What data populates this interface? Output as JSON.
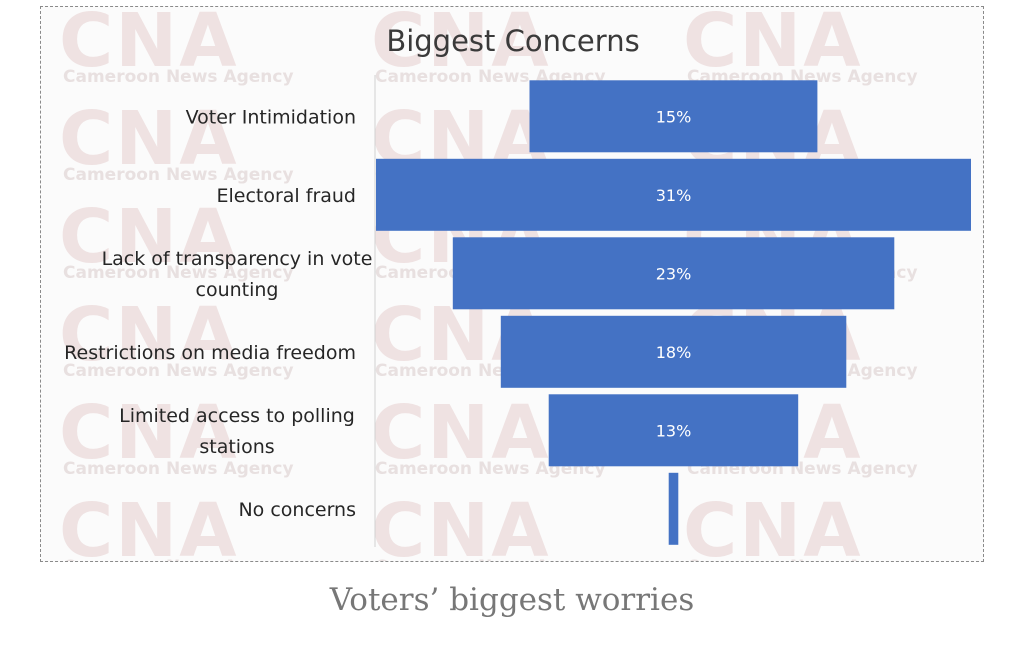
{
  "chart_data": {
    "type": "bar",
    "orientation": "horizontal",
    "layout": "funnel",
    "title": "Biggest Concerns",
    "categories": [
      "Voter Intimidation",
      "Electoral fraud",
      "Lack of transparency in vote counting",
      "Restrictions on media freedom",
      "Limited access to polling stations",
      "No concerns"
    ],
    "category_label_lines": [
      [
        "Voter Intimidation"
      ],
      [
        "Electoral fraud"
      ],
      [
        "Lack of transparency in vote",
        "counting"
      ],
      [
        "Restrictions on media freedom"
      ],
      [
        "Limited access to polling",
        "stations"
      ],
      [
        "No concerns"
      ]
    ],
    "values": [
      15,
      31,
      23,
      18,
      13,
      0.5
    ],
    "data_labels": [
      "15%",
      "31%",
      "23%",
      "18%",
      "13%",
      ""
    ],
    "xlim": [
      0,
      31
    ],
    "bar_color": "#4472c4",
    "grid": false,
    "legend": "none"
  },
  "watermark": {
    "logo_text": "CNA",
    "agency_text": "Cameroon News Agency"
  },
  "caption": "Voters’ biggest worries"
}
